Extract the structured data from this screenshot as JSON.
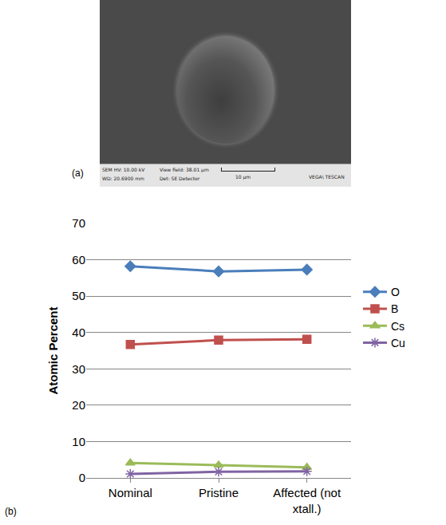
{
  "image_panel": {
    "label": "(a)",
    "info": [
      "SEM HV: 10.00 kV",
      "WD: 20.6900 mm",
      "View field: 38.01 µm",
      "Det: SE Detector",
      "10 µm",
      "VEGA\\ TESCAN"
    ]
  },
  "chart_data": {
    "type": "line",
    "panel_label": "(b)",
    "y_label": "Atomic Percent",
    "categories": [
      "Nominal",
      "Pristine",
      "Affected (not xtall.)"
    ],
    "series": [
      {
        "name": "O",
        "color": "#4a7ebb",
        "marker": "diamond",
        "values": [
          58.2,
          56.8,
          57.3
        ]
      },
      {
        "name": "B",
        "color": "#c0504d",
        "marker": "square",
        "values": [
          36.7,
          37.9,
          38.1
        ]
      },
      {
        "name": "Cs",
        "color": "#9bbb59",
        "marker": "triangle-up",
        "values": [
          4.1,
          3.5,
          2.9
        ]
      },
      {
        "name": "Cu",
        "color": "#8064a2",
        "marker": "asterisk-open",
        "values": [
          1.1,
          1.7,
          1.8
        ]
      }
    ],
    "ylim": [
      0,
      70
    ],
    "yticks": [
      0,
      10,
      20,
      30,
      40,
      50,
      60,
      70
    ],
    "grid": true,
    "legend": "right"
  }
}
